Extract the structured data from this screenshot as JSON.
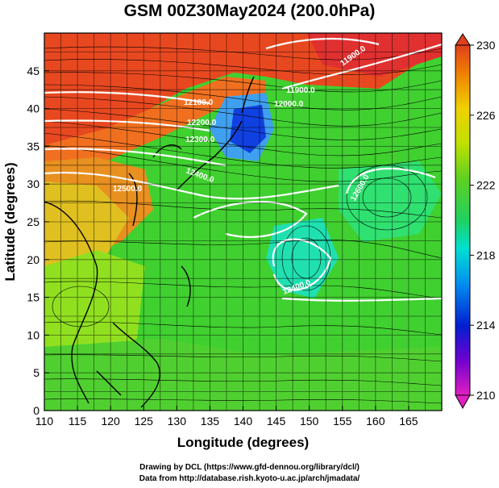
{
  "title": "GSM 00Z30May2024 (200.0hPa)",
  "x_axis": {
    "label": "Longitude (degrees)",
    "ticks": [
      "110",
      "115",
      "120",
      "125",
      "130",
      "135",
      "140",
      "145",
      "150",
      "155",
      "160",
      "165"
    ]
  },
  "y_axis": {
    "label": "Latitude  (degrees)",
    "ticks": [
      "0",
      "5",
      "10",
      "15",
      "20",
      "25",
      "30",
      "35",
      "40",
      "45"
    ]
  },
  "colorbar": {
    "ticks": [
      "210",
      "214",
      "218",
      "222",
      "226",
      "230"
    ],
    "colors": [
      "#e020c0",
      "#7000d0",
      "#0020d0",
      "#0090f0",
      "#00e0d0",
      "#00e070",
      "#30d020",
      "#90e000",
      "#f0e000",
      "#f09000",
      "#e04020"
    ]
  },
  "contour_labels": [
    "11900.0",
    "11900.0",
    "12000.0",
    "12100.0",
    "12200.0",
    "12300.0",
    "12400.0",
    "12500.0",
    "12600.0",
    "12400.0"
  ],
  "credit": {
    "line1": "Drawing by DCL (https://www.gfd-dennou.org/library/dcl/)",
    "line2": "Data from http://database.rish.kyoto-u.ac.jp/arch/jmadata/"
  }
}
